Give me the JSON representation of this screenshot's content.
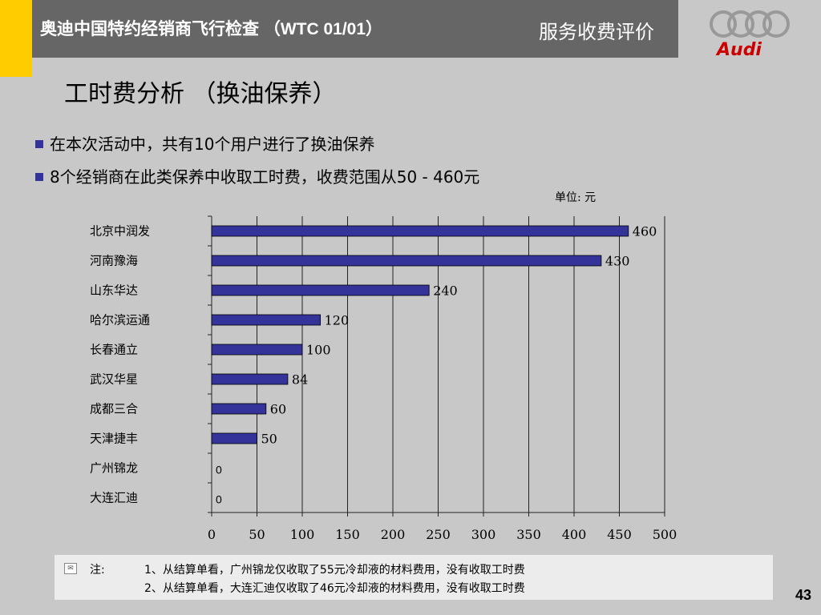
{
  "header": {
    "title": "奥迪中国特约经销商飞行检查 （WTC 01/01）",
    "section": "服务收费评价",
    "logo_text": "Audi",
    "accent_color": "#ffcc00",
    "bar_color": "#666666"
  },
  "page_title": "工时费分析 （换油保养）",
  "bullets": [
    "在本次活动中，共有10个用户进行了换油保养",
    "8个经销商在此类保养中收取工时费，收费范围从50 - 460元"
  ],
  "unit_label": "单位: 元",
  "chart_data": {
    "type": "bar",
    "orientation": "horizontal",
    "categories": [
      "北京中润发",
      "河南豫海",
      "山东华达",
      "哈尔滨运通",
      "长春通立",
      "武汉华星",
      "成都三合",
      "天津捷丰",
      "广州锦龙",
      "大连汇迪"
    ],
    "values": [
      460,
      430,
      240,
      120,
      100,
      84,
      60,
      50,
      0,
      0
    ],
    "value_labels": [
      "460",
      "430",
      "240",
      "120",
      "100",
      "84",
      "60",
      "50",
      "0",
      "0"
    ],
    "x_ticks": [
      "0",
      "50",
      "100",
      "150",
      "200",
      "250",
      "300",
      "350",
      "400",
      "450",
      "500"
    ],
    "xlim": [
      0,
      500
    ],
    "grid": true,
    "bar_color": "#333399"
  },
  "notes": {
    "label": "注:",
    "lines": [
      "1、从结算单看，广州锦龙仅收取了55元冷却液的材料费用，没有收取工时费",
      "2、从结算单看，大连汇迪仅收取了46元冷却液的材料费用，没有收取工时费"
    ]
  },
  "page_number": "43"
}
